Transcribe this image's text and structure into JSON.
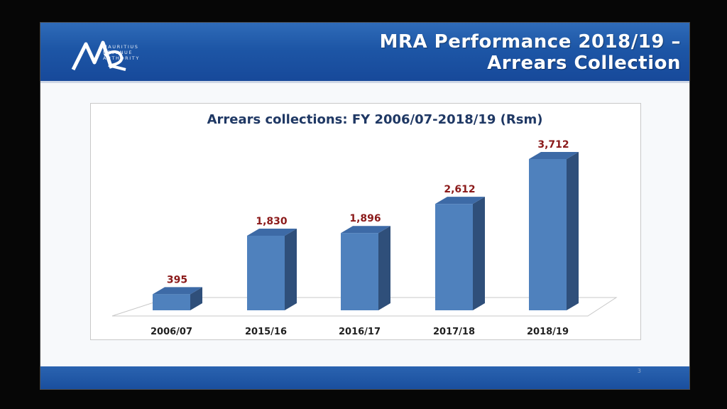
{
  "slide": {
    "title_line1": "MRA Performance 2018/19 –",
    "title_line2": "Arrears Collection",
    "logo": {
      "mark": "MR",
      "line1": "MAURITIUS",
      "line2": "REVENUE",
      "line3": "AUTHORITY"
    },
    "page_number": "3"
  },
  "colors": {
    "header_blue": "#1d56a6",
    "bar_front": "#4f81bd",
    "bar_side": "#2f4f7a",
    "bar_top": "#3d6aa6",
    "value_label": "#8b1a1a",
    "title_text": "#1f3864"
  },
  "chart_data": {
    "type": "bar",
    "title": "Arrears collections: FY 2006/07-2018/19 (Rsm)",
    "categories": [
      "2006/07",
      "2015/16",
      "2016/17",
      "2017/18",
      "2018/19"
    ],
    "values": [
      395,
      1830,
      1896,
      2612,
      3712
    ],
    "value_labels": [
      "395",
      "1,830",
      "1,896",
      "2,612",
      "3,712"
    ],
    "xlabel": "",
    "ylabel": "",
    "ylim": [
      0,
      3712
    ],
    "style": "3d-column",
    "grid": false,
    "legend": "none"
  }
}
